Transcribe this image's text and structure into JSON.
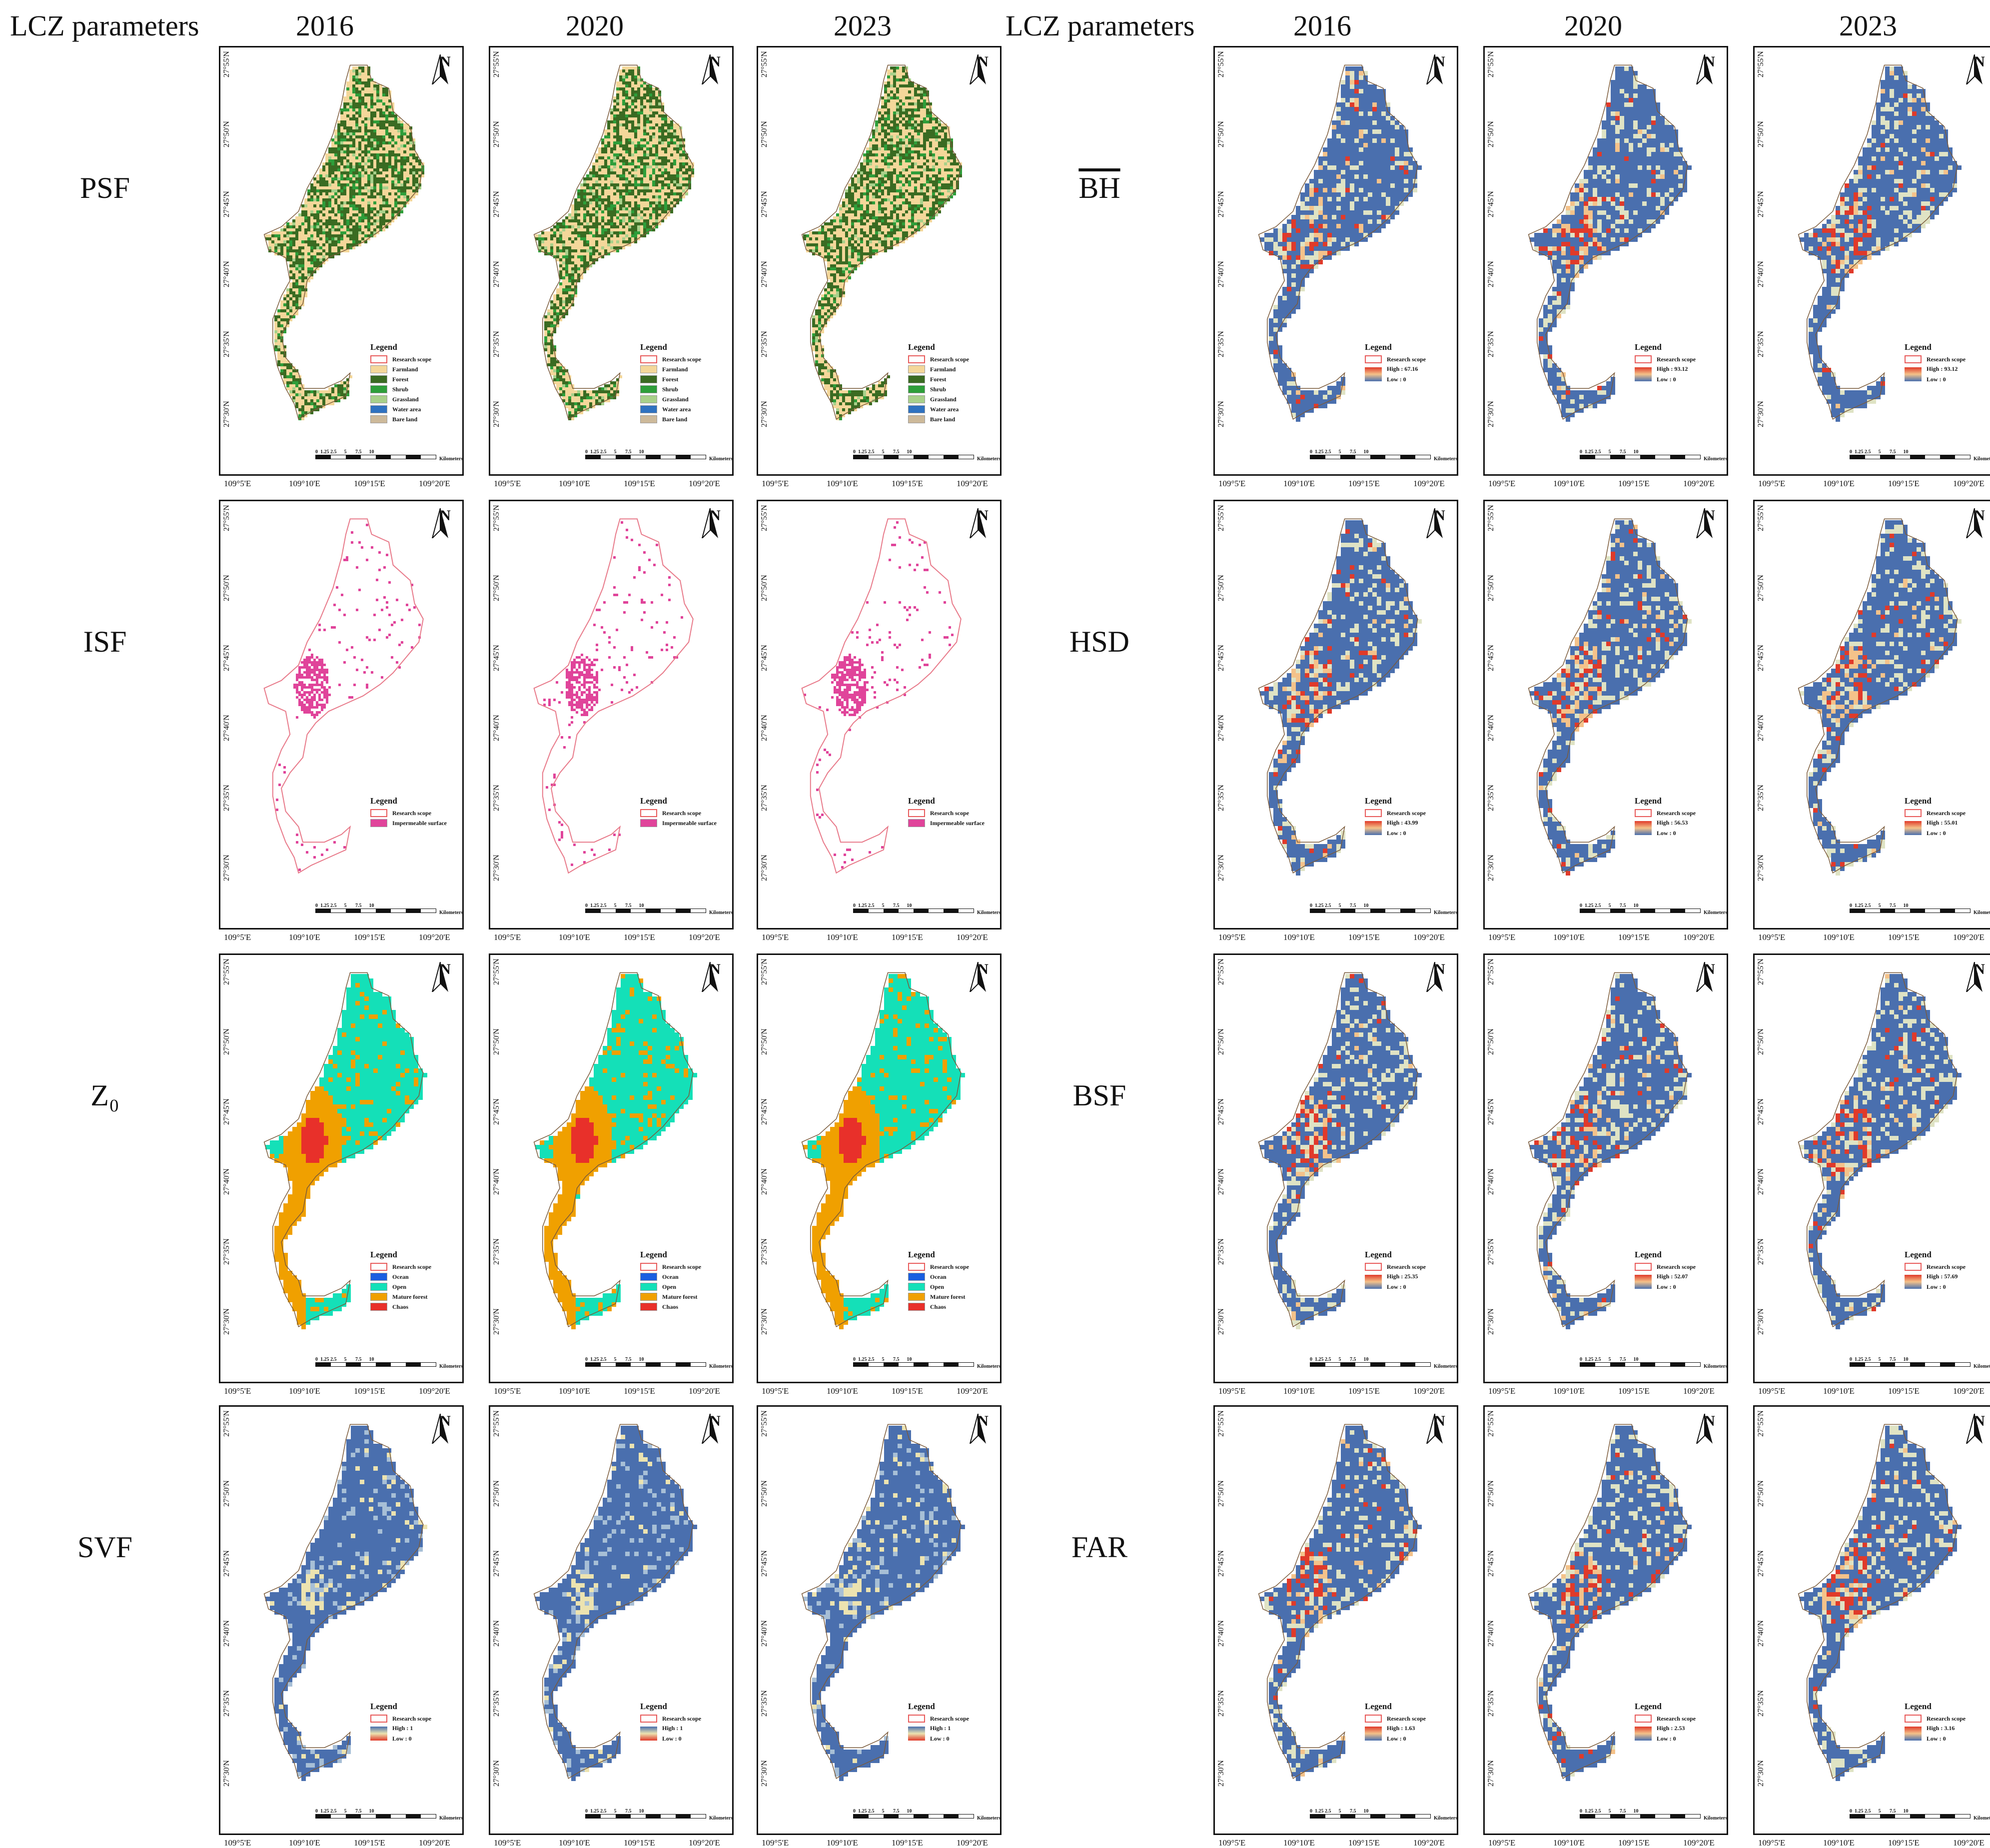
{
  "headers": {
    "left_param": "LCZ parameters",
    "right_param": "LCZ parameters",
    "years": [
      "2016",
      "2020",
      "2023"
    ]
  },
  "rows_left": [
    {
      "label": "PSF",
      "type": "landcover"
    },
    {
      "label": "ISF",
      "type": "impervious"
    },
    {
      "label": "Z₀",
      "type": "roughness"
    },
    {
      "label": "SVF",
      "type": "svf"
    }
  ],
  "rows_right": [
    {
      "label": "BH",
      "overline": true,
      "highs": [
        "High : 67.16",
        "High : 93.12",
        "High : 93.12"
      ]
    },
    {
      "label": "HSD",
      "highs": [
        "High : 43.99",
        "High : 56.53",
        "High : 55.01"
      ]
    },
    {
      "label": "BSF",
      "highs": [
        "High : 25.35",
        "High : 52.07",
        "High : 57.69"
      ]
    },
    {
      "label": "FAR",
      "highs": [
        "High : 1.63",
        "High : 2.53",
        "High : 3.16"
      ]
    }
  ],
  "legends": {
    "title": "Legend",
    "scope": "Research scope",
    "landcover": [
      {
        "label": "Farmland",
        "color": "#f4d79a"
      },
      {
        "label": "Forest",
        "color": "#3a6b22"
      },
      {
        "label": "Shrub",
        "color": "#2e9e3a"
      },
      {
        "label": "Grassland",
        "color": "#a8d08a"
      },
      {
        "label": "Water area",
        "color": "#2f72c0"
      },
      {
        "label": "Bare land",
        "color": "#cdb99a"
      }
    ],
    "impervious": [
      {
        "label": "Impermeable surface",
        "color": "#e0449a"
      }
    ],
    "roughness": [
      {
        "label": "Ocean",
        "color": "#1a5fe0"
      },
      {
        "label": "Open",
        "color": "#14e0b8"
      },
      {
        "label": "Mature forest",
        "color": "#f0a000"
      },
      {
        "label": "Chaos",
        "color": "#e8302a"
      }
    ],
    "svf_high": "High : 1",
    "low": "Low : 0",
    "svf_low": "Low : 0"
  },
  "axes": {
    "lat_ticks": [
      "27°55'N",
      "27°50'N",
      "27°45'N",
      "27°40'N",
      "27°35'N",
      "27°30'N"
    ],
    "lon_ticks": [
      "109°5'E",
      "109°10'E",
      "109°15'E",
      "109°20'E"
    ],
    "north": "N",
    "scale_numbers": "0  1.25 2.5      5       7.5      10",
    "scale_unit": "Kilometers"
  },
  "colors": {
    "blue_base": "#4a6fae",
    "hot": "#e03a2a",
    "warm": "#f4c28a",
    "pale": "#e8e4c0"
  }
}
